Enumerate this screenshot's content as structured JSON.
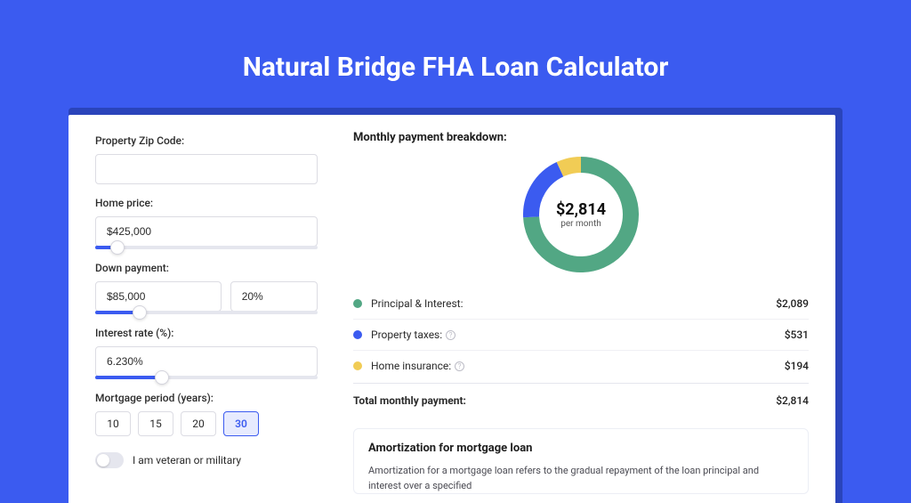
{
  "page": {
    "title": "Natural Bridge FHA Loan Calculator",
    "background_color": "#3b5bf0",
    "card_shadow_color": "#2a44bb",
    "card_bg": "#ffffff"
  },
  "form": {
    "zip": {
      "label": "Property Zip Code:",
      "value": ""
    },
    "home_price": {
      "label": "Home price:",
      "value": "$425,000",
      "slider_pct": 10
    },
    "down_payment": {
      "label": "Down payment:",
      "amount": "$85,000",
      "percent": "20%",
      "slider_pct": 20
    },
    "interest_rate": {
      "label": "Interest rate (%):",
      "value": "6.230%",
      "slider_pct": 30
    },
    "mortgage_period": {
      "label": "Mortgage period (years):",
      "options": [
        "10",
        "15",
        "20",
        "30"
      ],
      "active_index": 3
    },
    "veteran": {
      "label": "I am veteran or military",
      "on": false
    }
  },
  "breakdown": {
    "title": "Monthly payment breakdown:",
    "donut": {
      "value": "$2,814",
      "sub": "per month",
      "segments": [
        {
          "label": "Principal & Interest:",
          "amount": "$2,089",
          "color": "#52a784",
          "fraction": 0.742
        },
        {
          "label": "Property taxes:",
          "amount": "$531",
          "color": "#3b5bf0",
          "fraction": 0.189,
          "has_info": true
        },
        {
          "label": "Home insurance:",
          "amount": "$194",
          "color": "#f1cc55",
          "fraction": 0.069,
          "has_info": true
        }
      ],
      "ring_width": 18,
      "radius": 56
    },
    "total": {
      "label": "Total monthly payment:",
      "amount": "$2,814"
    }
  },
  "amortization": {
    "title": "Amortization for mortgage loan",
    "text": "Amortization for a mortgage loan refers to the gradual repayment of the loan principal and interest over a specified"
  }
}
